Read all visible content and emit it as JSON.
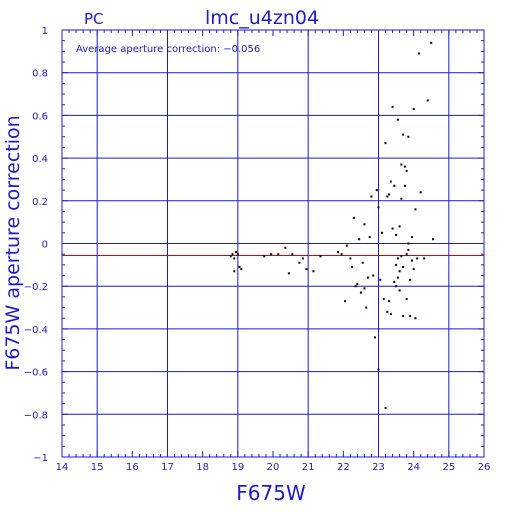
{
  "header": {
    "camera": "PC",
    "title": "lmc_u4zn04"
  },
  "annotation": "Average aperture correction: −0.056",
  "colors": {
    "axes": "#1c1ccc",
    "grid": "#1c1ccc",
    "points": "#000000",
    "mean_line": "#e00000"
  },
  "chart_data": {
    "type": "scatter",
    "title": "lmc_u4zn04",
    "xlabel": "F675W",
    "ylabel": "F675W aperture correction",
    "xlim": [
      14,
      26
    ],
    "ylim": [
      -1,
      1
    ],
    "x_ticks": [
      "14",
      "15",
      "16",
      "17",
      "18",
      "19",
      "20",
      "21",
      "22",
      "23",
      "24",
      "25",
      "26"
    ],
    "y_ticks": [
      "−1",
      "−0.8",
      "−0.6",
      "−0.4",
      "−0.2",
      "0",
      "0.2",
      "0.4",
      "0.6",
      "0.8",
      "1"
    ],
    "grid": true,
    "mean_correction": -0.056,
    "points": [
      [
        18.8,
        -0.06
      ],
      [
        18.85,
        -0.05
      ],
      [
        18.9,
        -0.13
      ],
      [
        18.95,
        -0.04
      ],
      [
        19.0,
        -0.05
      ],
      [
        19.05,
        -0.11
      ],
      [
        19.1,
        -0.12
      ],
      [
        18.9,
        -0.07
      ],
      [
        19.75,
        -0.06
      ],
      [
        19.95,
        -0.05
      ],
      [
        20.15,
        -0.05
      ],
      [
        20.35,
        -0.02
      ],
      [
        20.45,
        -0.14
      ],
      [
        20.55,
        -0.05
      ],
      [
        20.75,
        -0.09
      ],
      [
        20.85,
        -0.07
      ],
      [
        20.95,
        -0.12
      ],
      [
        21.15,
        -0.13
      ],
      [
        21.35,
        -0.06
      ],
      [
        21.85,
        -0.04
      ],
      [
        21.95,
        -0.05
      ],
      [
        22.05,
        -0.27
      ],
      [
        22.1,
        -0.01
      ],
      [
        22.2,
        -0.07
      ],
      [
        22.25,
        -0.11
      ],
      [
        22.3,
        0.12
      ],
      [
        22.35,
        -0.2
      ],
      [
        22.4,
        -0.19
      ],
      [
        22.45,
        0.02
      ],
      [
        22.5,
        -0.23
      ],
      [
        22.55,
        -0.09
      ],
      [
        22.6,
        0.09
      ],
      [
        22.65,
        -0.3
      ],
      [
        22.7,
        -0.16
      ],
      [
        22.75,
        0.03
      ],
      [
        22.8,
        0.22
      ],
      [
        22.85,
        -0.15
      ],
      [
        22.9,
        -0.44
      ],
      [
        22.95,
        0.25
      ],
      [
        23.0,
        -0.59
      ],
      [
        23.05,
        -0.17
      ],
      [
        23.1,
        0.05
      ],
      [
        23.15,
        -0.26
      ],
      [
        23.2,
        -0.77
      ],
      [
        23.2,
        0.47
      ],
      [
        23.25,
        0.22
      ],
      [
        23.25,
        -0.32
      ],
      [
        23.3,
        -0.27
      ],
      [
        23.3,
        0.23
      ],
      [
        23.35,
        0.29
      ],
      [
        23.35,
        -0.33
      ],
      [
        23.4,
        0.64
      ],
      [
        23.4,
        0.07
      ],
      [
        23.45,
        -0.18
      ],
      [
        23.45,
        0.27
      ],
      [
        23.5,
        -0.1
      ],
      [
        23.5,
        0.04
      ],
      [
        23.55,
        0.58
      ],
      [
        23.55,
        -0.07
      ],
      [
        23.6,
        -0.13
      ],
      [
        23.6,
        0.08
      ],
      [
        23.6,
        -0.22
      ],
      [
        23.65,
        0.37
      ],
      [
        23.65,
        -0.06
      ],
      [
        23.65,
        0.21
      ],
      [
        23.7,
        0.51
      ],
      [
        23.7,
        -0.34
      ],
      [
        23.75,
        0.36
      ],
      [
        23.75,
        0.27
      ],
      [
        23.8,
        -0.26
      ],
      [
        23.8,
        -0.05
      ],
      [
        23.8,
        0.34
      ],
      [
        23.85,
        0.5
      ],
      [
        23.85,
        -0.03
      ],
      [
        23.9,
        -0.17
      ],
      [
        23.9,
        -0.34
      ],
      [
        23.95,
        0.03
      ],
      [
        24.0,
        0.63
      ],
      [
        24.0,
        -0.12
      ],
      [
        24.05,
        0.16
      ],
      [
        24.05,
        -0.35
      ],
      [
        24.1,
        -0.07
      ],
      [
        24.15,
        0.89
      ],
      [
        24.2,
        0.24
      ],
      [
        24.3,
        -0.07
      ],
      [
        24.4,
        0.67
      ],
      [
        24.5,
        0.94
      ],
      [
        24.55,
        0.02
      ],
      [
        23.95,
        -0.08
      ],
      [
        23.55,
        -0.16
      ],
      [
        23.7,
        -0.11
      ],
      [
        23.85,
        0.0
      ],
      [
        23.5,
        -0.2
      ],
      [
        22.6,
        -0.21
      ],
      [
        23.0,
        0.17
      ]
    ]
  }
}
